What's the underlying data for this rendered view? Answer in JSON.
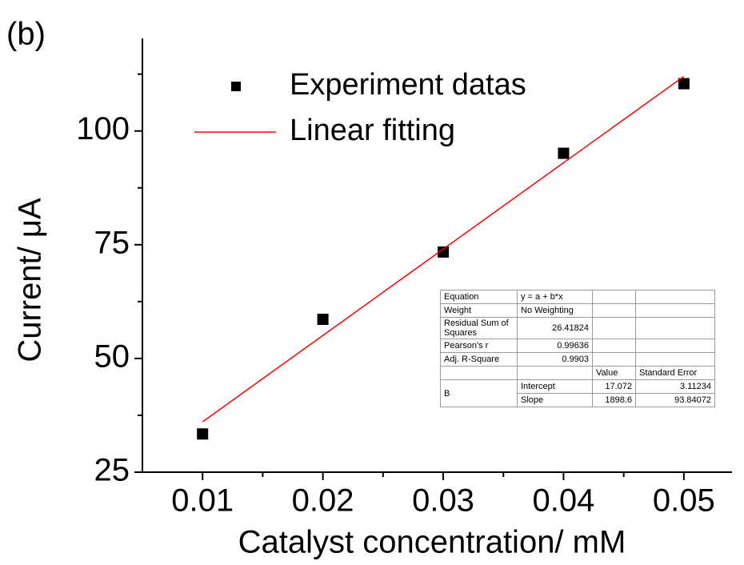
{
  "chart_data": {
    "type": "scatter",
    "panel_label": "(b)",
    "x_label": "Catalyst concentration/ mM",
    "y_label": "Current/ μA",
    "xlim": [
      0.005,
      0.054
    ],
    "ylim": [
      25,
      120
    ],
    "xticks": [
      0.01,
      0.02,
      0.03,
      0.04,
      0.05
    ],
    "yticks": [
      25,
      50,
      75,
      100
    ],
    "xminorticks": [
      0.015,
      0.025,
      0.035,
      0.045
    ],
    "yminorticks": [
      37.5,
      62.5,
      87.5,
      112.5
    ],
    "series": [
      {
        "name": "Experiment datas",
        "color": "#000000",
        "marker": "square",
        "x": [
          0.01,
          0.02,
          0.03,
          0.04,
          0.05
        ],
        "values": [
          33.4,
          58.6,
          73.4,
          95.1,
          110.4
        ]
      },
      {
        "name": "Linear fitting",
        "color": "#ff0000",
        "marker": "line",
        "x": [
          0.01,
          0.05
        ],
        "values": [
          36.06,
          112.0
        ]
      }
    ],
    "fit_table": [
      [
        "Equation",
        "y = a + b*x"
      ],
      [
        "Weight",
        "No Weighting"
      ],
      [
        "Residual Sum of Squares",
        "26.41824"
      ],
      [
        "Pearson's r",
        "0.99636"
      ],
      [
        "Adj. R-Square",
        "0.9903"
      ],
      [
        "Value",
        "Standard Error"
      ],
      [
        "B",
        "Intercept",
        "17.072",
        "3.11234"
      ],
      [
        "Slope",
        "1898.6",
        "93.84072"
      ]
    ]
  }
}
